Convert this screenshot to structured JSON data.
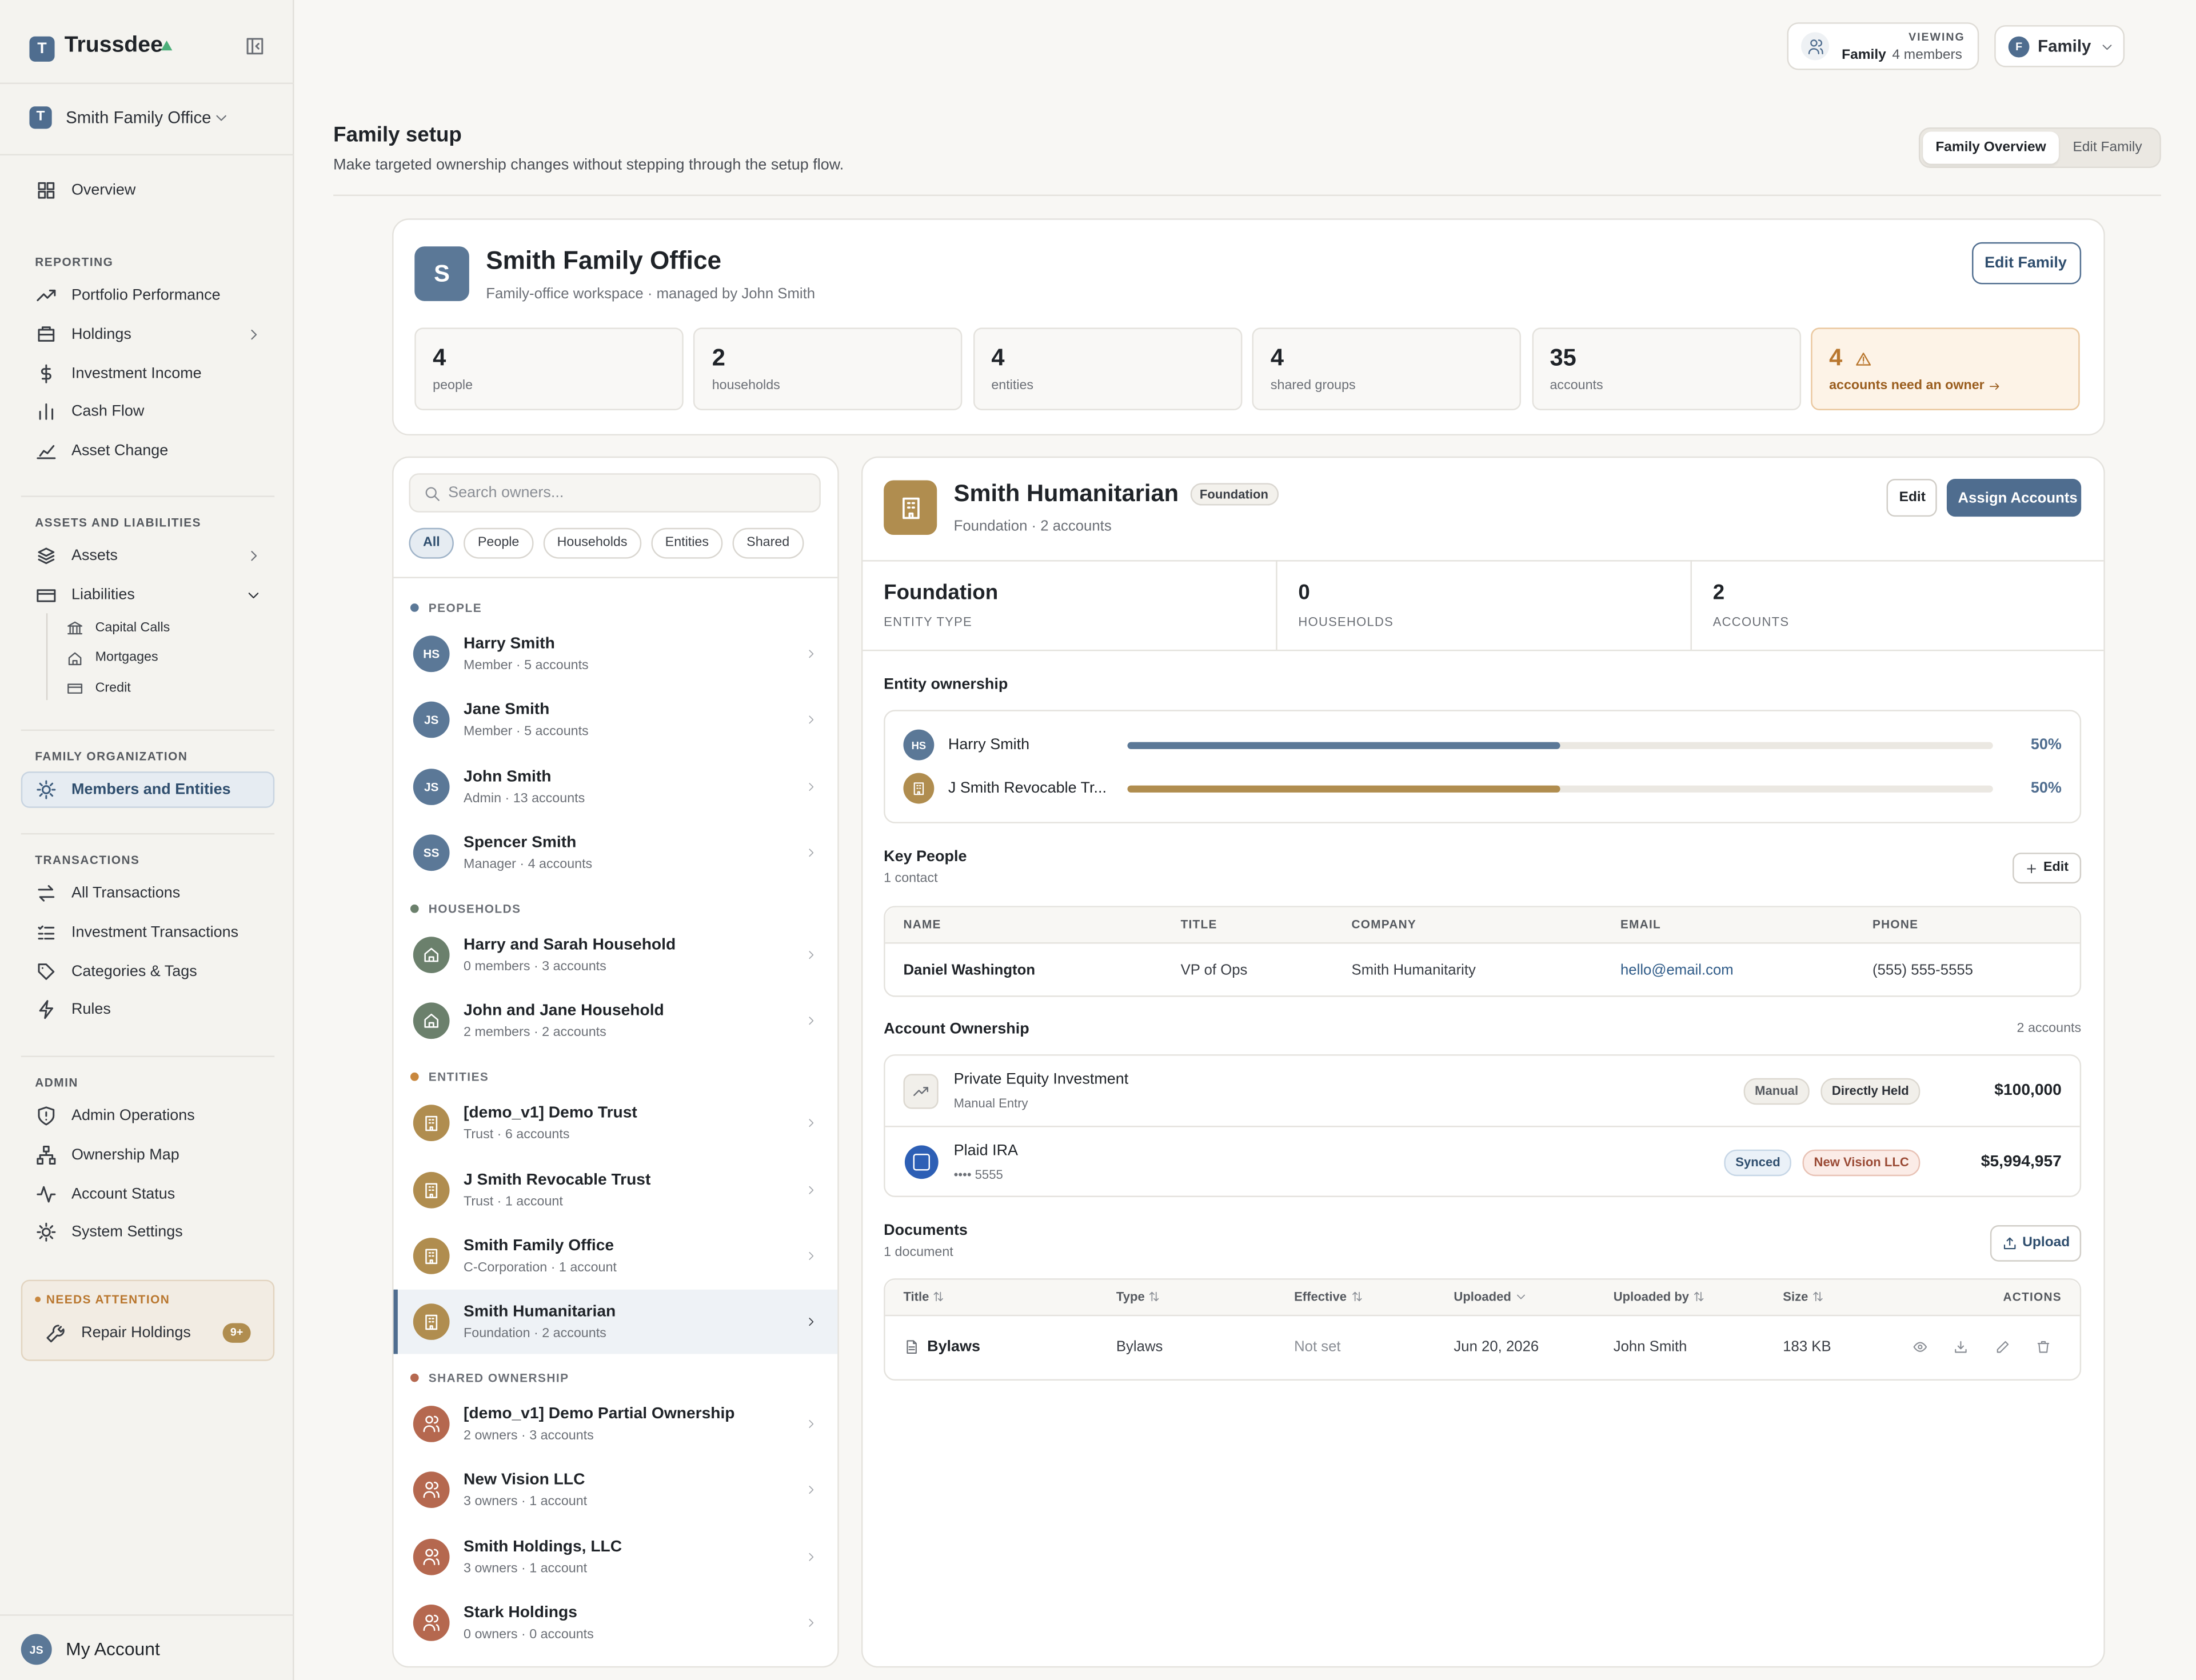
{
  "sidebar": {
    "brand_initial": "T",
    "brand": "Trussdee",
    "workspace_initial": "T",
    "workspace": "Smith Family Office",
    "overview": "Overview",
    "sections": [
      {
        "title": "REPORTING",
        "items": [
          "Portfolio Performance",
          "Holdings",
          "Investment Income",
          "Cash Flow",
          "Asset Change"
        ]
      },
      {
        "title": "ASSETS AND LIABILITIES",
        "items": [
          "Assets",
          "Liabilities"
        ],
        "subitems": [
          "Capital Calls",
          "Mortgages",
          "Credit"
        ]
      },
      {
        "title": "FAMILY ORGANIZATION",
        "items": [
          "Members and Entities"
        ]
      },
      {
        "title": "TRANSACTIONS",
        "items": [
          "All Transactions",
          "Investment Transactions",
          "Categories & Tags",
          "Rules"
        ]
      },
      {
        "title": "ADMIN",
        "items": [
          "Admin Operations",
          "Ownership Map",
          "Account Status",
          "System Settings"
        ]
      }
    ],
    "attention": {
      "title": "NEEDS ATTENTION",
      "item": "Repair Holdings",
      "badge": "9+"
    },
    "account": {
      "initials": "JS",
      "name": "My Account"
    }
  },
  "topbar": {
    "viewing_label": "VIEWING",
    "viewing_name": "Family",
    "viewing_members": "4 members",
    "switch_initial": "F",
    "switch_label": "Family"
  },
  "header": {
    "title": "Family setup",
    "subtitle": "Make targeted ownership changes without stepping through the setup flow.",
    "tabs": [
      "Family Overview",
      "Edit Family"
    ]
  },
  "family_card": {
    "initial": "S",
    "name": "Smith Family Office",
    "description": "Family-office workspace · managed by John Smith",
    "edit_button": "Edit Family",
    "stats": [
      {
        "value": 4,
        "label": "people"
      },
      {
        "value": 2,
        "label": "households"
      },
      {
        "value": 4,
        "label": "entities"
      },
      {
        "value": 4,
        "label": "shared groups"
      },
      {
        "value": 35,
        "label": "accounts"
      },
      {
        "value": 4,
        "label": "accounts need an owner"
      }
    ]
  },
  "owners": {
    "search_placeholder": "Search owners...",
    "filters": [
      "All",
      "People",
      "Households",
      "Entities",
      "Shared"
    ],
    "groups": [
      {
        "title": "PEOPLE",
        "items": [
          {
            "initials": "HS",
            "name": "Harry Smith",
            "detail": "Member · 5 accounts"
          },
          {
            "initials": "JS",
            "name": "Jane Smith",
            "detail": "Member · 5 accounts"
          },
          {
            "initials": "JS",
            "name": "John Smith",
            "detail": "Admin · 13 accounts"
          },
          {
            "initials": "SS",
            "name": "Spencer Smith",
            "detail": "Manager · 4 accounts"
          }
        ]
      },
      {
        "title": "HOUSEHOLDS",
        "items": [
          {
            "name": "Harry and Sarah Household",
            "detail": "0 members · 3 accounts"
          },
          {
            "name": "John and Jane Household",
            "detail": "2 members · 2 accounts"
          }
        ]
      },
      {
        "title": "ENTITIES",
        "items": [
          {
            "name": "[demo_v1] Demo Trust",
            "detail": "Trust · 6 accounts"
          },
          {
            "name": "J Smith Revocable Trust",
            "detail": "Trust · 1 account"
          },
          {
            "name": "Smith Family Office",
            "detail": "C-Corporation · 1 account"
          },
          {
            "name": "Smith Humanitarian",
            "detail": "Foundation · 2 accounts"
          }
        ]
      },
      {
        "title": "SHARED OWNERSHIP",
        "items": [
          {
            "name": "[demo_v1] Demo Partial Ownership",
            "detail": "2 owners · 3 accounts"
          },
          {
            "name": "New Vision LLC",
            "detail": "3 owners · 1 account"
          },
          {
            "name": "Smith Holdings, LLC",
            "detail": "3 owners · 1 account"
          },
          {
            "name": "Stark Holdings",
            "detail": "0 owners · 0 accounts"
          }
        ]
      }
    ]
  },
  "detail": {
    "name": "Smith Humanitarian",
    "badge": "Foundation",
    "subtitle": "Foundation · 2 accounts",
    "buttons": [
      "Edit",
      "Assign Accounts"
    ],
    "stats": [
      {
        "value": "Foundation",
        "label": "ENTITY TYPE"
      },
      {
        "value": 0,
        "label": "HOUSEHOLDS"
      },
      {
        "value": 2,
        "label": "ACCOUNTS"
      }
    ],
    "ownership": {
      "title": "Entity ownership",
      "rows": [
        {
          "initials": "HS",
          "name": "Harry Smith",
          "percent": 50,
          "percent_label": "50%"
        },
        {
          "name": "J Smith Revocable Tr...",
          "percent": 50,
          "percent_label": "50%"
        }
      ]
    },
    "key_people": {
      "title": "Key People",
      "count": "1 contact",
      "button": "Edit",
      "columns": [
        "NAME",
        "TITLE",
        "COMPANY",
        "EMAIL",
        "PHONE"
      ],
      "rows": [
        [
          "Daniel Washington",
          "VP of Ops",
          "Smith Humanitarity",
          "hello@email.com",
          "(555) 555-5555"
        ]
      ]
    },
    "accounts": {
      "title": "Account Ownership",
      "count": "2 accounts",
      "rows": [
        {
          "name": "Private Equity Investment",
          "sub": "Manual Entry",
          "tags": [
            "Manual",
            "Directly Held"
          ],
          "amount": "$100,000"
        },
        {
          "name": "Plaid IRA",
          "sub": "•••• 5555",
          "tags": [
            "Synced",
            "New Vision LLC"
          ],
          "amount": "$5,994,957"
        }
      ]
    },
    "documents": {
      "title": "Documents",
      "count": "1 document",
      "button": "Upload",
      "columns": [
        "Title",
        "Type",
        "Effective",
        "Uploaded",
        "Uploaded by",
        "Size",
        "ACTIONS"
      ],
      "rows": [
        [
          "Bylaws",
          "Bylaws",
          "Not set",
          "Jun 20, 2026",
          "John Smith",
          "183 KB"
        ]
      ]
    }
  }
}
